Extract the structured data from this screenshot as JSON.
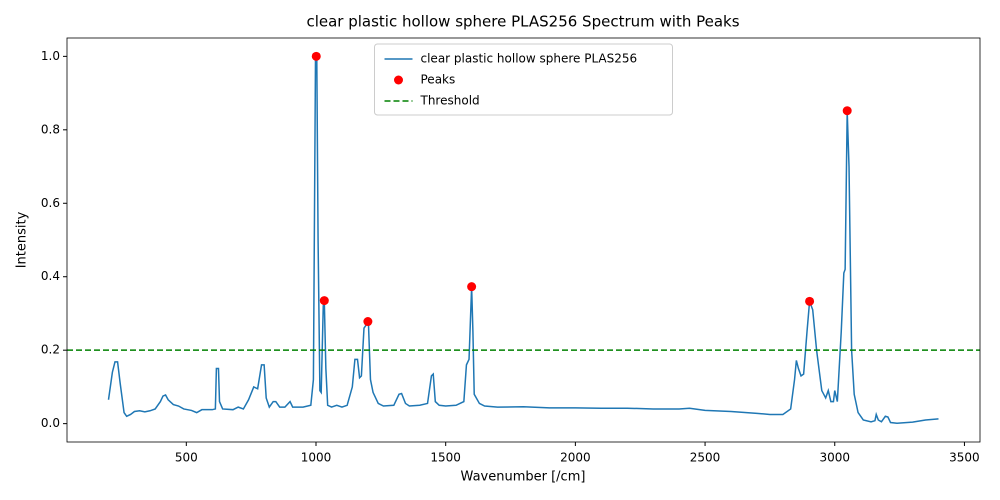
{
  "chart_data": {
    "type": "line",
    "title": "clear plastic hollow sphere PLAS256 Spectrum with Peaks",
    "xlabel": "Wavenumber [/cm]",
    "ylabel": "Intensity",
    "xlim": [
      40,
      3560
    ],
    "ylim": [
      -0.05,
      1.05
    ],
    "xticks": [
      500,
      1000,
      1500,
      2000,
      2500,
      3000,
      3500
    ],
    "yticks": [
      {
        "value": 0,
        "label": "0.0"
      },
      0.2,
      0.4,
      0.6,
      0.8,
      {
        "value": 1,
        "label": "1.0"
      }
    ],
    "legend": "upper center",
    "series": [
      {
        "name": "clear plastic hollow sphere PLAS256",
        "type": "line",
        "color": "#1f77b4",
        "x": [
          200,
          215,
          225,
          235,
          245,
          260,
          270,
          285,
          300,
          320,
          340,
          360,
          380,
          400,
          410,
          420,
          430,
          450,
          470,
          490,
          520,
          540,
          560,
          600,
          612,
          616,
          624,
          628,
          640,
          680,
          700,
          720,
          740,
          760,
          775,
          790,
          800,
          808,
          820,
          835,
          845,
          860,
          880,
          900,
          910,
          950,
          980,
          990,
          998,
          1003,
          1008,
          1015,
          1020,
          1028,
          1032,
          1038,
          1045,
          1060,
          1080,
          1100,
          1120,
          1140,
          1150,
          1160,
          1168,
          1175,
          1185,
          1195,
          1202,
          1210,
          1220,
          1240,
          1260,
          1300,
          1320,
          1330,
          1345,
          1360,
          1400,
          1430,
          1445,
          1452,
          1460,
          1475,
          1500,
          1540,
          1570,
          1580,
          1590,
          1600,
          1605,
          1610,
          1630,
          1650,
          1700,
          1800,
          1900,
          2000,
          2100,
          2200,
          2300,
          2400,
          2440,
          2500,
          2600,
          2700,
          2750,
          2800,
          2830,
          2845,
          2852,
          2860,
          2870,
          2880,
          2893,
          2903,
          2915,
          2930,
          2950,
          2965,
          2975,
          2985,
          2995,
          3000,
          3010,
          3025,
          3035,
          3040,
          3048,
          3055,
          3065,
          3075,
          3090,
          3110,
          3140,
          3155,
          3160,
          3168,
          3180,
          3195,
          3205,
          3215,
          3240,
          3300,
          3350,
          3400
        ],
        "values": [
          0.065,
          0.14,
          0.168,
          0.168,
          0.11,
          0.03,
          0.02,
          0.025,
          0.033,
          0.035,
          0.032,
          0.035,
          0.04,
          0.06,
          0.075,
          0.078,
          0.065,
          0.052,
          0.048,
          0.04,
          0.036,
          0.03,
          0.038,
          0.038,
          0.04,
          0.15,
          0.15,
          0.06,
          0.04,
          0.038,
          0.045,
          0.04,
          0.065,
          0.1,
          0.095,
          0.16,
          0.16,
          0.07,
          0.045,
          0.06,
          0.06,
          0.045,
          0.045,
          0.06,
          0.045,
          0.045,
          0.05,
          0.12,
          0.99,
          1.0,
          0.5,
          0.09,
          0.085,
          0.32,
          0.335,
          0.15,
          0.05,
          0.045,
          0.05,
          0.045,
          0.05,
          0.1,
          0.175,
          0.175,
          0.125,
          0.13,
          0.26,
          0.27,
          0.277,
          0.12,
          0.085,
          0.055,
          0.048,
          0.05,
          0.08,
          0.082,
          0.055,
          0.048,
          0.05,
          0.055,
          0.13,
          0.135,
          0.06,
          0.05,
          0.048,
          0.05,
          0.06,
          0.16,
          0.175,
          0.373,
          0.25,
          0.08,
          0.055,
          0.048,
          0.045,
          0.046,
          0.043,
          0.043,
          0.042,
          0.042,
          0.04,
          0.04,
          0.042,
          0.036,
          0.033,
          0.028,
          0.025,
          0.025,
          0.04,
          0.12,
          0.172,
          0.15,
          0.13,
          0.135,
          0.25,
          0.333,
          0.31,
          0.2,
          0.09,
          0.07,
          0.09,
          0.06,
          0.06,
          0.09,
          0.06,
          0.25,
          0.41,
          0.42,
          0.85,
          0.7,
          0.2,
          0.08,
          0.03,
          0.01,
          0.005,
          0.008,
          0.025,
          0.01,
          0.005,
          0.02,
          0.018,
          0.003,
          0.001,
          0.004,
          0.01,
          0.013
        ]
      },
      {
        "name": "Peaks",
        "type": "scatter",
        "color": "#ff0000",
        "x": [
          1001,
          1032,
          1200,
          1600,
          2903,
          3048
        ],
        "values": [
          1.0,
          0.335,
          0.278,
          0.373,
          0.333,
          0.852
        ]
      },
      {
        "name": "Threshold",
        "type": "hline",
        "color": "#008000",
        "dash": true,
        "value": 0.2
      }
    ]
  }
}
